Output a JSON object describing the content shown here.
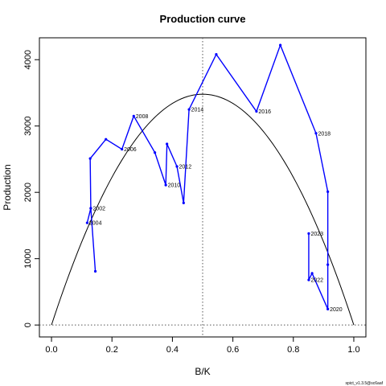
{
  "chart_data": {
    "type": "line",
    "title": "Production curve",
    "xlabel": "B/K",
    "ylabel": "Production",
    "xlim": [
      -0.04,
      1.04
    ],
    "ylim": [
      -180,
      4330
    ],
    "xticks": [
      "0.0",
      "0.2",
      "0.4",
      "0.6",
      "0.8",
      "1.0"
    ],
    "yticks": [
      "0",
      "1000",
      "2000",
      "3000",
      "4000"
    ],
    "colors": {
      "series": "#0000ff",
      "curve": "#000000",
      "reference": "#555555"
    },
    "series": [
      {
        "x": [
          0.145,
          0.13,
          0.118,
          0.13,
          0.128,
          0.18,
          0.233,
          0.272,
          0.342,
          0.378,
          0.382,
          0.415,
          0.437,
          0.455,
          0.545,
          0.678,
          0.757,
          0.875,
          0.914,
          0.914,
          0.914,
          0.862,
          0.851,
          0.851
        ],
        "y": [
          810,
          1760,
          1540,
          1760,
          2510,
          2800,
          2650,
          3150,
          2600,
          2110,
          2730,
          2390,
          1840,
          3250,
          4080,
          3220,
          4220,
          2890,
          2010,
          910,
          240,
          780,
          680,
          1380
        ]
      }
    ],
    "year_labels": [
      {
        "text": "2002",
        "x": 0.13,
        "y": 1760
      },
      {
        "text": "2004",
        "x": 0.118,
        "y": 1540
      },
      {
        "text": "2006",
        "x": 0.233,
        "y": 2650
      },
      {
        "text": "2008",
        "x": 0.272,
        "y": 3150
      },
      {
        "text": "2010",
        "x": 0.378,
        "y": 2110
      },
      {
        "text": "2012",
        "x": 0.415,
        "y": 2390
      },
      {
        "text": "2014",
        "x": 0.455,
        "y": 3250
      },
      {
        "text": "2016",
        "x": 0.678,
        "y": 3220
      },
      {
        "text": "2018",
        "x": 0.875,
        "y": 2890
      },
      {
        "text": "2020",
        "x": 0.914,
        "y": 240
      },
      {
        "text": "2022",
        "x": 0.851,
        "y": 680
      },
      {
        "text": "2023",
        "x": 0.851,
        "y": 1380
      }
    ],
    "production_curve": {
      "peak_x": 0.5,
      "peak_y": 3480
    },
    "reference_lines": {
      "vertical_x": 0.5,
      "horizontal_y": 0
    },
    "grid": false,
    "legend": "none"
  },
  "footer": "spict_v1.3.5@sc6aaf"
}
